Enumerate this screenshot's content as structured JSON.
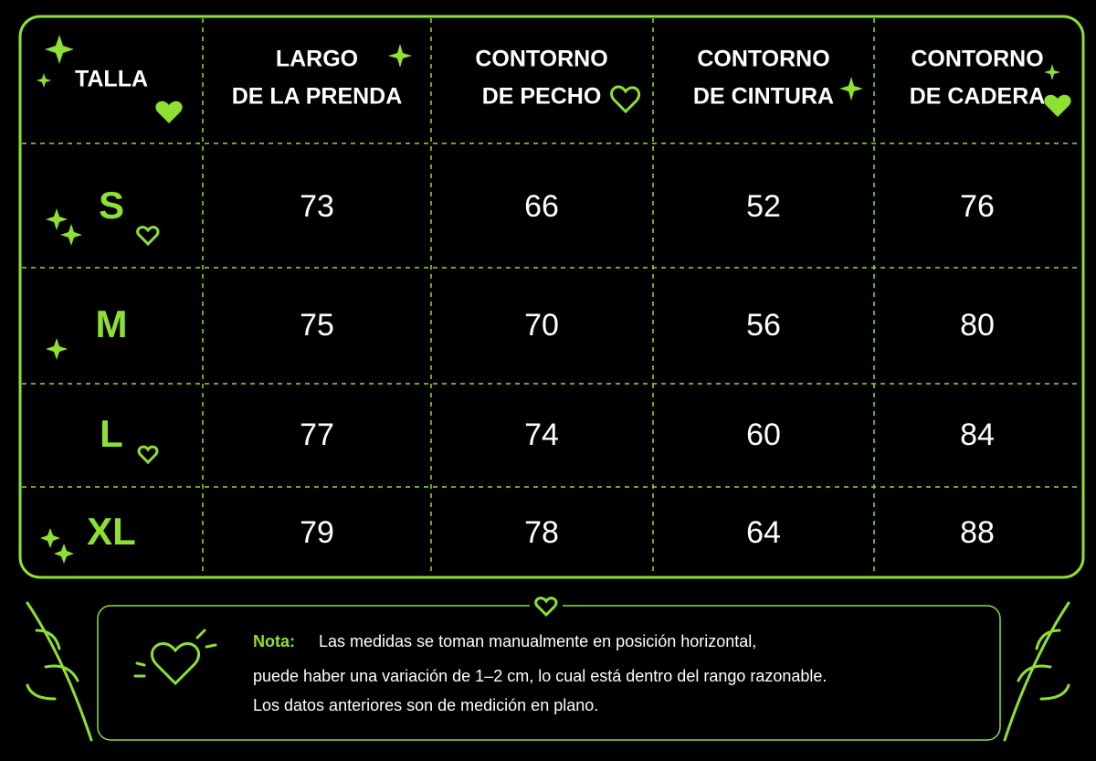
{
  "table": {
    "header": [
      [
        "TALLA"
      ],
      [
        "LARGO",
        "DE LA PRENDA"
      ],
      [
        "CONTORNO",
        "DE PECHO"
      ],
      [
        "CONTORNO",
        "DE CINTURA"
      ],
      [
        "CONTORNO",
        "DE CADERA"
      ]
    ],
    "rows": [
      [
        "S",
        "73",
        "66",
        "52",
        "76"
      ],
      [
        "M",
        "75",
        "70",
        "56",
        "80"
      ],
      [
        "L",
        "77",
        "74",
        "60",
        "84"
      ],
      [
        "XL",
        "79",
        "78",
        "64",
        "88"
      ]
    ]
  },
  "note": {
    "label": "Nota:",
    "lines": [
      "Las medidas se toman manualmente en posición horizontal,",
      "puede haber una variación de 1–2 cm, lo cual está dentro del rango razonable.",
      "Los datos anteriores son de medición en plano."
    ]
  }
}
